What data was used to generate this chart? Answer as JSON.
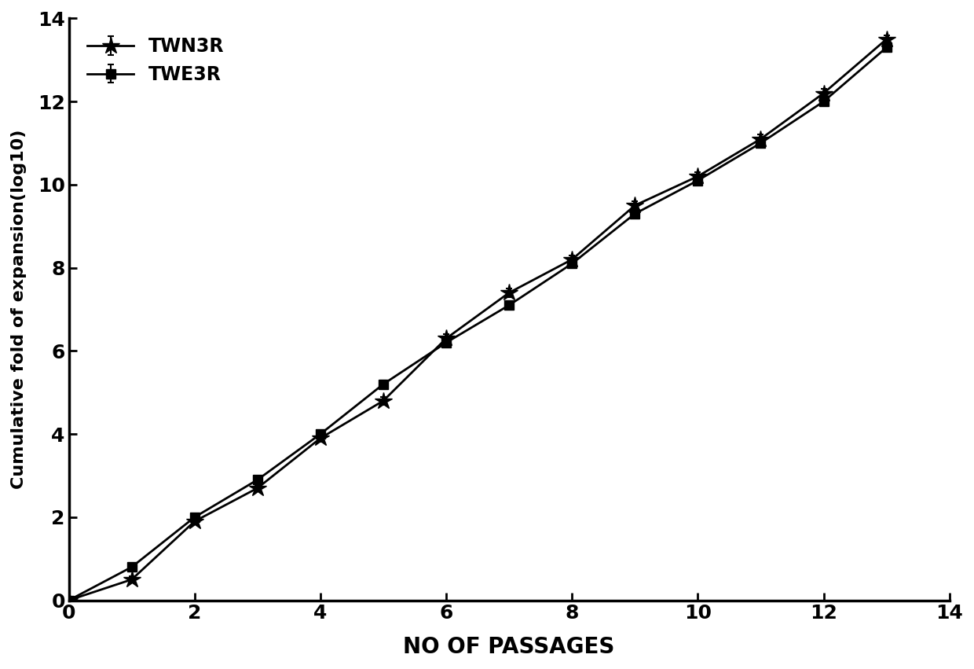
{
  "TWN3R_x": [
    0,
    1,
    2,
    3,
    4,
    5,
    6,
    7,
    8,
    9,
    10,
    11,
    12,
    13
  ],
  "TWN3R_y": [
    0,
    0.5,
    1.9,
    2.7,
    3.9,
    4.8,
    6.3,
    7.4,
    8.2,
    9.5,
    10.2,
    11.1,
    12.2,
    13.5
  ],
  "TWN3R_yerr": [
    0,
    0.08,
    0.08,
    0.08,
    0.08,
    0.1,
    0.1,
    0.1,
    0.1,
    0.1,
    0.1,
    0.1,
    0.1,
    0.1
  ],
  "TWE3R_x": [
    0,
    1,
    2,
    3,
    4,
    5,
    6,
    7,
    8,
    9,
    10,
    11,
    12,
    13
  ],
  "TWE3R_y": [
    0,
    0.8,
    2.0,
    2.9,
    4.0,
    5.2,
    6.2,
    7.1,
    8.1,
    9.3,
    10.1,
    11.0,
    12.0,
    13.3
  ],
  "TWE3R_yerr": [
    0,
    0.08,
    0.08,
    0.08,
    0.08,
    0.08,
    0.08,
    0.08,
    0.08,
    0.08,
    0.08,
    0.08,
    0.08,
    0.08
  ],
  "xlabel": "NO OF PASSAGES",
  "ylabel": "Cumulative fold of expansion(log10)",
  "xlim": [
    0,
    14
  ],
  "ylim": [
    0,
    14
  ],
  "xticks": [
    0,
    2,
    4,
    6,
    8,
    10,
    12,
    14
  ],
  "yticks": [
    0,
    2,
    4,
    6,
    8,
    10,
    12,
    14
  ],
  "line_color": "#000000",
  "marker_TWN3R": "*",
  "marker_TWE3R": "s",
  "markersize_star": 16,
  "markersize_sq": 9,
  "linewidth": 2.0,
  "legend_TWN3R": "TWN3R",
  "legend_TWE3R": "TWE3R",
  "background_color": "#ffffff",
  "xlabel_fontsize": 20,
  "ylabel_fontsize": 16,
  "tick_fontsize": 18,
  "legend_fontsize": 17,
  "capsize": 3,
  "capthick": 1.5,
  "elinewidth": 1.5
}
